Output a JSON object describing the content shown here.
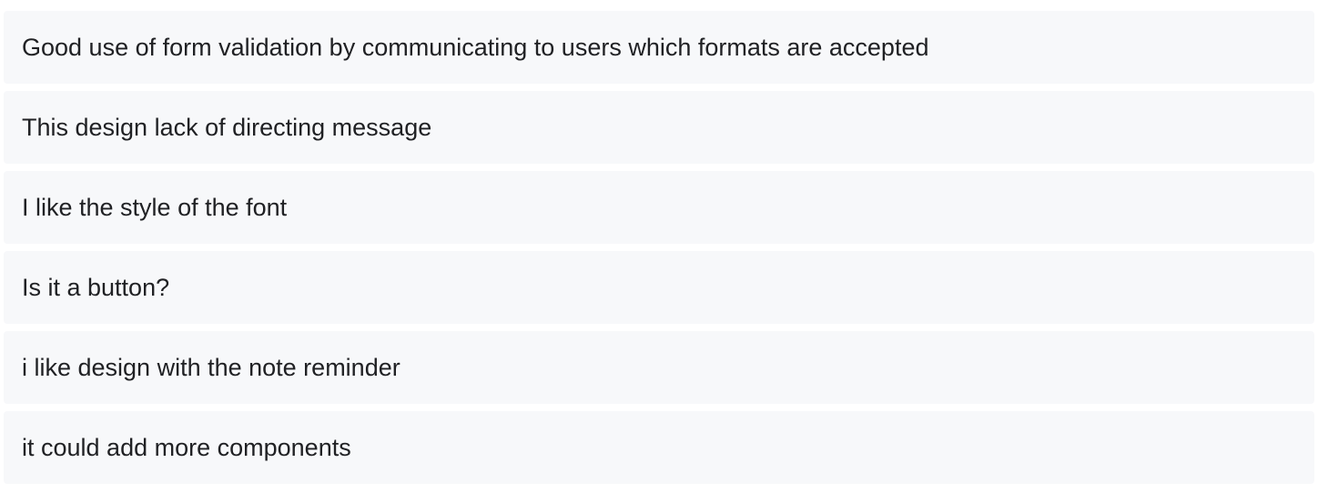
{
  "responses": [
    {
      "text": "Good use of form validation by communicating to users which formats are accepted"
    },
    {
      "text": "This design lack of directing message"
    },
    {
      "text": "I like the style of the font"
    },
    {
      "text": "Is it a button?"
    },
    {
      "text": "i like design with the note reminder"
    },
    {
      "text": "it could add more components"
    }
  ]
}
